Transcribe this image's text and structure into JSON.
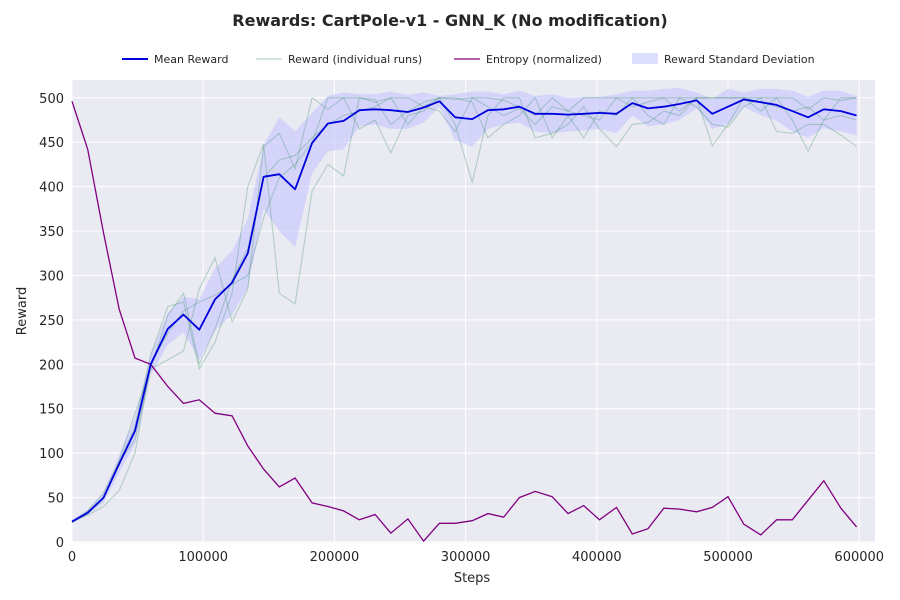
{
  "chart_data": {
    "type": "line",
    "title": "Rewards: CartPole-v1 - GNN_K (No modification)",
    "xlabel": "Steps",
    "ylabel": "Reward",
    "xlim": [
      0,
      612000
    ],
    "ylim": [
      0,
      520
    ],
    "xticks": [
      0,
      100000,
      200000,
      300000,
      400000,
      500000,
      600000
    ],
    "yticks": [
      0,
      50,
      100,
      150,
      200,
      250,
      300,
      350,
      400,
      450,
      500
    ],
    "grid": true,
    "legend": {
      "placement": "top-center",
      "entries": [
        "Mean Reward",
        "Reward (individual runs)",
        "Entropy (normalized)",
        "Reward Standard Deviation"
      ]
    },
    "colors": {
      "mean": "#0000dd",
      "runs": "#2e8b57",
      "entropy": "#800080",
      "band": "#c8c8ff",
      "background": "#eaeaf2"
    },
    "x": [
      0,
      12000,
      24000,
      36000,
      48000,
      60000,
      73000,
      85000,
      97000,
      109000,
      122000,
      134000,
      146000,
      158000,
      170000,
      183000,
      195000,
      207000,
      219000,
      231000,
      243000,
      256000,
      268000,
      280000,
      292000,
      305000,
      317000,
      329000,
      341000,
      353000,
      366000,
      378000,
      390000,
      402000,
      415000,
      427000,
      439000,
      451000,
      463000,
      476000,
      488000,
      500000,
      512000,
      525000,
      537000,
      549000,
      561000,
      573000,
      586000,
      598000
    ],
    "series": [
      {
        "name": "Mean Reward",
        "role": "mean",
        "values": [
          23,
          33,
          50,
          88,
          125,
          200,
          240,
          256,
          239,
          273,
          292,
          325,
          411,
          414,
          397,
          449,
          471,
          474,
          486,
          487,
          486,
          484,
          489,
          496,
          478,
          476,
          486,
          487,
          490,
          482,
          482,
          481,
          482,
          483,
          482,
          494,
          488,
          490,
          493,
          497,
          482,
          490,
          498,
          495,
          492,
          485,
          478,
          487,
          485,
          480
        ]
      },
      {
        "name": "Reward Standard Deviation",
        "role": "band",
        "lower": [
          21,
          30,
          44,
          78,
          110,
          188,
          222,
          236,
          205,
          238,
          256,
          286,
          375,
          350,
          332,
          415,
          440,
          442,
          468,
          470,
          465,
          465,
          472,
          490,
          452,
          445,
          465,
          470,
          472,
          462,
          460,
          462,
          463,
          465,
          460,
          480,
          468,
          470,
          475,
          488,
          465,
          470,
          490,
          480,
          474,
          462,
          455,
          466,
          462,
          458
        ],
        "upper": [
          25,
          36,
          56,
          98,
          140,
          212,
          258,
          276,
          273,
          308,
          328,
          364,
          447,
          478,
          462,
          483,
          502,
          506,
          504,
          504,
          507,
          503,
          506,
          502,
          504,
          507,
          507,
          504,
          508,
          502,
          504,
          500,
          501,
          501,
          504,
          508,
          508,
          510,
          511,
          506,
          499,
          510,
          506,
          510,
          510,
          508,
          501,
          508,
          508,
          502
        ]
      },
      {
        "name": "Reward (individual runs)",
        "role": "run",
        "values": [
          22,
          32,
          48,
          90,
          130,
          210,
          265,
          270,
          195,
          225,
          280,
          400,
          448,
          280,
          268,
          395,
          425,
          412,
          500,
          498,
          470,
          485,
          495,
          500,
          470,
          405,
          480,
          500,
          500,
          455,
          460,
          470,
          490,
          465,
          445,
          470,
          472,
          485,
          480,
          500,
          446,
          470,
          500,
          500,
          500,
          475,
          440,
          475,
          500,
          500
        ]
      },
      {
        "role": "run",
        "values": [
          24,
          30,
          40,
          58,
          100,
          200,
          235,
          260,
          270,
          278,
          290,
          300,
          365,
          410,
          425,
          450,
          500,
          500,
          465,
          475,
          438,
          480,
          485,
          500,
          500,
          495,
          455,
          470,
          480,
          500,
          455,
          480,
          455,
          485,
          480,
          500,
          500,
          500,
          500,
          490,
          470,
          467,
          490,
          500,
          462,
          460,
          470,
          470,
          458,
          445
        ]
      },
      {
        "role": "run",
        "values": [
          23,
          35,
          55,
          90,
          115,
          195,
          205,
          215,
          285,
          320,
          248,
          285,
          445,
          460,
          420,
          500,
          487,
          500,
          500,
          495,
          500,
          500,
          490,
          500,
          498,
          500,
          500,
          497,
          490,
          480,
          500,
          485,
          500,
          500,
          500,
          500,
          480,
          470,
          500,
          500,
          500,
          500,
          500,
          485,
          500,
          500,
          487,
          500,
          497,
          500
        ]
      },
      {
        "role": "run",
        "values": [
          22,
          32,
          50,
          92,
          145,
          195,
          255,
          280,
          200,
          240,
          295,
          330,
          410,
          430,
          435,
          455,
          470,
          480,
          485,
          490,
          500,
          470,
          490,
          485,
          462,
          500,
          490,
          480,
          488,
          470,
          490,
          485,
          480,
          475,
          500,
          490,
          495,
          500,
          485,
          500,
          500,
          500,
          500,
          495,
          490,
          485,
          490,
          475,
          480,
          475
        ]
      },
      {
        "name": "Entropy (normalized)",
        "role": "entropy",
        "values": [
          496,
          442,
          348,
          262,
          207,
          200,
          175,
          156,
          160,
          145,
          142,
          108,
          82,
          62,
          72,
          44,
          40,
          35,
          25,
          31,
          10,
          26,
          1,
          21,
          21,
          24,
          32,
          28,
          50,
          57,
          51,
          32,
          41,
          25,
          39,
          9,
          15,
          38,
          37,
          34,
          39,
          51,
          20,
          8,
          25,
          25,
          47,
          69,
          38,
          17
        ]
      }
    ]
  }
}
